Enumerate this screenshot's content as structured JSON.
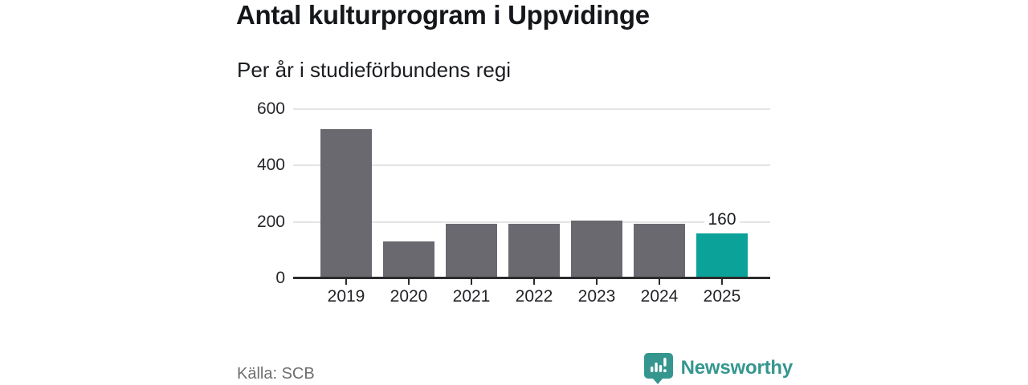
{
  "chart_data": {
    "type": "bar",
    "title": "Antal kulturprogram i Uppvidinge",
    "subtitle": "Per år i studieförbundens regi",
    "categories": [
      "2019",
      "2020",
      "2021",
      "2022",
      "2023",
      "2024",
      "2025"
    ],
    "values": [
      530,
      132,
      192,
      192,
      205,
      194,
      160
    ],
    "bar_labels": [
      "",
      "",
      "",
      "",
      "",
      "",
      "160"
    ],
    "highlight_index": 6,
    "bar_color": "#6b6970",
    "highlight_color": "#0ba29a",
    "ylim": [
      0,
      600
    ],
    "y_ticks": [
      0,
      200,
      400,
      600
    ],
    "grid": true,
    "legend": "none",
    "xlabel": "",
    "ylabel": ""
  },
  "footer": {
    "source": "Källa: SCB",
    "brand_name": "Newsworthy"
  },
  "colors": {
    "grid": "#e4e4e4",
    "axis": "#2b2b2b",
    "brand_teal": "#35968f"
  }
}
